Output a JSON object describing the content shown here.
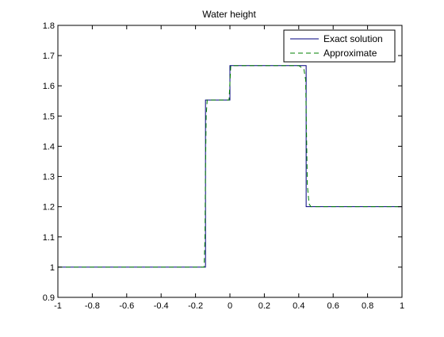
{
  "chart_data": {
    "type": "line",
    "title": "Water height",
    "xlabel": "",
    "ylabel": "",
    "xlim": [
      -1,
      1
    ],
    "ylim": [
      0.9,
      1.8
    ],
    "xticks": [
      "-1",
      "-0.8",
      "-0.6",
      "-0.4",
      "-0.2",
      "0",
      "0.2",
      "0.4",
      "0.6",
      "0.8",
      "1"
    ],
    "yticks": [
      "0.9",
      "1",
      "1.1",
      "1.2",
      "1.3",
      "1.4",
      "1.5",
      "1.6",
      "1.7",
      "1.8"
    ],
    "grid": false,
    "legend_position": "top-right",
    "series": [
      {
        "name": "Exact solution",
        "color": "#00007f",
        "style": "solid",
        "x": [
          -1,
          -0.142,
          -0.142,
          0,
          0,
          0.443,
          0.443,
          1
        ],
        "y": [
          1,
          1,
          1.553,
          1.553,
          1.667,
          1.667,
          1.2,
          1.2
        ]
      },
      {
        "name": "Approximate",
        "color": "#007f00",
        "style": "dashed",
        "x": [
          -1,
          -0.15,
          -0.145,
          -0.142,
          -0.138,
          -0.132,
          -0.005,
          0,
          0.005,
          0.4,
          0.43,
          0.44,
          0.445,
          0.45,
          0.46,
          0.47,
          1
        ],
        "y": [
          1,
          1,
          1.1,
          1.32,
          1.5,
          1.553,
          1.553,
          1.61,
          1.667,
          1.667,
          1.655,
          1.62,
          1.45,
          1.27,
          1.21,
          1.2,
          1.2
        ]
      }
    ]
  }
}
